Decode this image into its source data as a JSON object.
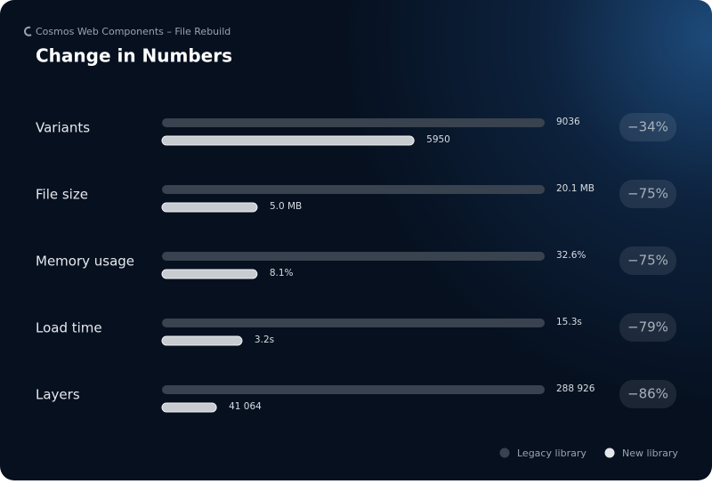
{
  "chart_data": {
    "type": "bar",
    "orientation": "horizontal",
    "subtitle": "Cosmos Web Components – File Rebuild",
    "title": "Change in Numbers",
    "categories": [
      "Variants",
      "File size",
      "Memory usage",
      "Load time",
      "Layers"
    ],
    "series": [
      {
        "name": "Legacy library",
        "color": "#39424f",
        "values": [
          9036,
          20.1,
          32.6,
          15.3,
          288926
        ],
        "value_labels": [
          "9036",
          "20.1 MB",
          "32.6%",
          "15.3s",
          "288 926"
        ]
      },
      {
        "name": "New library",
        "color": "#c8cbd0",
        "values": [
          5950,
          5.0,
          8.1,
          3.2,
          41064
        ],
        "value_labels": [
          "5950",
          "5.0 MB",
          "8.1%",
          "3.2s",
          "41 064"
        ]
      }
    ],
    "changes": {
      "values": [
        -34,
        -75,
        -75,
        -79,
        -86
      ],
      "value_labels": [
        "−34%",
        "−75%",
        "−75%",
        "−79%",
        "−86%"
      ]
    }
  }
}
